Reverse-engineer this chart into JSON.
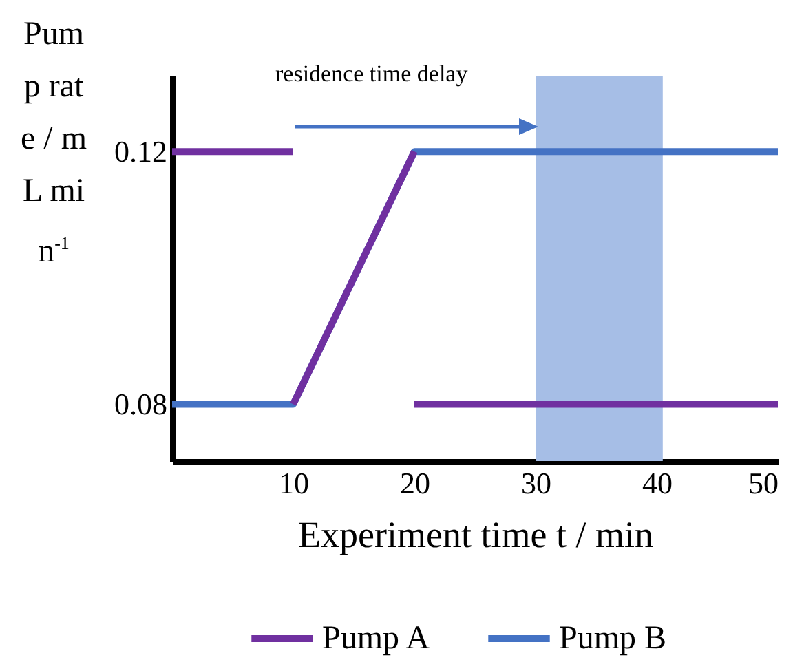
{
  "chart_data": {
    "type": "line",
    "xlabel": "Experiment time t / min",
    "ylabel": "Pump rate / mL min$^{-1}$",
    "xlim": [
      0,
      50
    ],
    "xticks": [
      10,
      20,
      30,
      40,
      50
    ],
    "ylim": [
      0.071,
      0.132
    ],
    "yticks": [
      0.08,
      0.12
    ],
    "series": [
      {
        "name": "Pump A",
        "color": "#7030a0",
        "x": [
          0,
          10,
          15,
          20,
          50
        ],
        "values": [
          0.12,
          0.12,
          null,
          0.08,
          0.08
        ]
      },
      {
        "name": "Pump B",
        "color": "#4472c4",
        "x": [
          0,
          10,
          20,
          50
        ],
        "values": [
          0.08,
          0.08,
          0.12,
          0.12
        ]
      },
      {
        "color": "#7030a0",
        "x": [
          10,
          20
        ],
        "values": [
          0.08,
          0.12
        ]
      }
    ],
    "bands": [
      {
        "axis": "x",
        "from": 30,
        "to": 40.5,
        "color": "#a6bee6"
      }
    ],
    "annotations": [
      "residence time delay"
    ],
    "grid": false,
    "legend": "bottom",
    "marker": "none",
    "line_style": "solid"
  }
}
